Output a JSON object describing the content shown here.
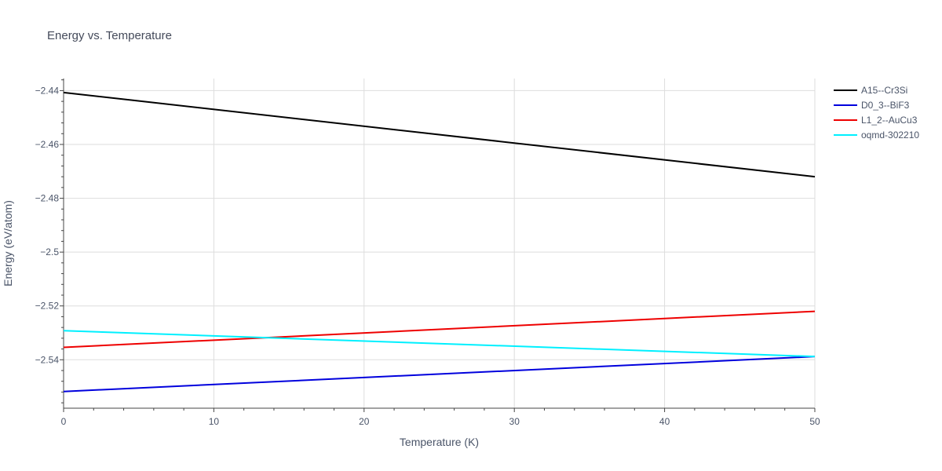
{
  "chart_data": {
    "type": "line",
    "title": "Energy vs. Temperature",
    "xlabel": "Temperature (K)",
    "ylabel": "Energy (eV/atom)",
    "xlim": [
      0,
      50
    ],
    "ylim": [
      -2.558,
      -2.4355
    ],
    "x_ticks": [
      0,
      10,
      20,
      30,
      40,
      50
    ],
    "x_tick_labels": [
      "0",
      "10",
      "20",
      "30",
      "40",
      "50"
    ],
    "y_ticks": [
      -2.44,
      -2.46,
      -2.48,
      -2.5,
      -2.52,
      -2.54
    ],
    "y_tick_labels": [
      "−2.44",
      "−2.46",
      "−2.48",
      "−2.5",
      "−2.52",
      "−2.54"
    ],
    "grid": true,
    "legend_position": "top-right, outside plot",
    "series": [
      {
        "name": "A15--Cr3Si",
        "color": "#000000",
        "x": [
          0,
          50
        ],
        "y": [
          -2.4407,
          -2.472
        ]
      },
      {
        "name": "D0_3--BiF3",
        "color": "#0000dd",
        "x": [
          0,
          50
        ],
        "y": [
          -2.5518,
          -2.5388
        ]
      },
      {
        "name": "L1_2--AuCu3",
        "color": "#ee0000",
        "x": [
          0,
          50
        ],
        "y": [
          -2.5354,
          -2.522
        ]
      },
      {
        "name": "oqmd-302210",
        "color": "#00f0ff",
        "x": [
          0,
          50
        ],
        "y": [
          -2.5292,
          -2.5388
        ]
      }
    ]
  }
}
